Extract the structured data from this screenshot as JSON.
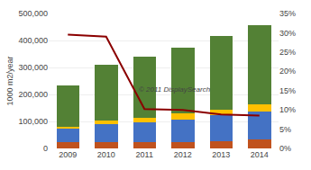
{
  "chart_data": {
    "type": "bar",
    "stacked": true,
    "categories": [
      "2009",
      "2010",
      "2011",
      "2012",
      "2013",
      "2014"
    ],
    "series": [
      {
        "type": "bar",
        "color": "#c0521e",
        "values": [
          22000,
          25000,
          22000,
          22000,
          28000,
          32000
        ]
      },
      {
        "type": "bar",
        "color": "#4472c4",
        "values": [
          50000,
          65000,
          75000,
          85000,
          95000,
          105000
        ]
      },
      {
        "type": "bar",
        "color": "#ffc000",
        "values": [
          8000,
          15000,
          18000,
          22000,
          20000,
          25000
        ]
      },
      {
        "type": "bar",
        "color": "#538135",
        "values": [
          155000,
          205000,
          225000,
          245000,
          275000,
          295000
        ]
      },
      {
        "type": "line",
        "axis": "y2",
        "color": "#8b0000",
        "values": [
          29.5,
          29.0,
          10.2,
          10.0,
          8.8,
          8.5
        ]
      }
    ],
    "ylabel": "1000 m2/year",
    "ylim": [
      0,
      500000
    ],
    "yticks": [
      0,
      {
        "value": 100000,
        "label": "100,000"
      },
      {
        "value": 200000,
        "label": "200,000"
      },
      {
        "value": 300000,
        "label": "300,000"
      },
      {
        "value": 400000,
        "label": "400,000"
      },
      {
        "value": 500000,
        "label": "500,000"
      }
    ],
    "y2lim": [
      0,
      35
    ],
    "y2ticks": [
      {
        "value": 0,
        "label": "0%"
      },
      {
        "value": 5,
        "label": "5%"
      },
      {
        "value": 10,
        "label": "10%"
      },
      {
        "value": 15,
        "label": "15%"
      },
      {
        "value": 20,
        "label": "20%"
      },
      {
        "value": 25,
        "label": "25%"
      },
      {
        "value": 30,
        "label": "30%"
      },
      {
        "value": 35,
        "label": "35%"
      }
    ],
    "grid": true,
    "annotations": [
      "© 2011 DisplaySearch"
    ]
  }
}
